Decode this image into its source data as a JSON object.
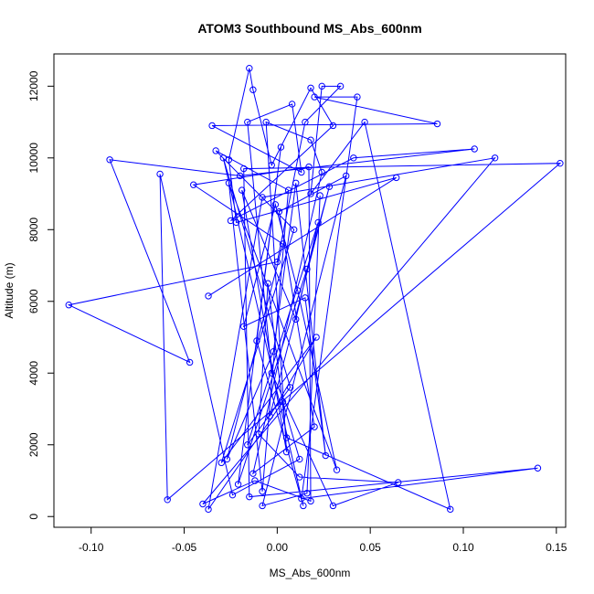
{
  "chart_data": {
    "type": "line",
    "title": "ATOM3 Southbound MS_Abs_600nm",
    "xlabel": "MS_Abs_600nm",
    "ylabel": "Altitude (m)",
    "xlim": [
      -0.12,
      0.155
    ],
    "ylim": [
      -300,
      12900
    ],
    "x_ticks": [
      -0.1,
      -0.05,
      0.0,
      0.05,
      0.1,
      0.15
    ],
    "x_tick_labels": [
      "-0.10",
      "-0.05",
      "0.00",
      "0.05",
      "0.10",
      "0.15"
    ],
    "y_ticks": [
      0,
      2000,
      4000,
      6000,
      8000,
      10000,
      12000
    ],
    "y_tick_labels": [
      "0",
      "2000",
      "4000",
      "6000",
      "8000",
      "10000",
      "12000"
    ],
    "grid": false,
    "series": [
      {
        "color": "#0000ff",
        "marker": "open-circle",
        "points": [
          [
            -0.037,
            6150
          ],
          [
            0.064,
            9450
          ],
          [
            -0.022,
            8200
          ],
          [
            -0.026,
            9950
          ],
          [
            -0.015,
            12500
          ],
          [
            -0.013,
            11900
          ],
          [
            -0.003,
            9800
          ],
          [
            0.018,
            11950
          ],
          [
            0.03,
            10900
          ],
          [
            -0.025,
            8250
          ],
          [
            0.041,
            10000
          ],
          [
            0.106,
            10250
          ],
          [
            -0.02,
            9500
          ],
          [
            -0.09,
            9950
          ],
          [
            -0.047,
            4300
          ],
          [
            -0.112,
            5900
          ],
          [
            0.0,
            7100
          ],
          [
            0.015,
            11000
          ],
          [
            0.034,
            12000
          ],
          [
            0.024,
            12000
          ],
          [
            0.018,
            9000
          ],
          [
            0.047,
            11000
          ],
          [
            0.093,
            200
          ],
          [
            0.005,
            2200
          ],
          [
            -0.005,
            6500
          ],
          [
            -0.01,
            2300
          ],
          [
            0.012,
            1100
          ],
          [
            0.065,
            950
          ],
          [
            0.03,
            300
          ],
          [
            -0.003,
            4000
          ],
          [
            -0.016,
            11000
          ],
          [
            0.008,
            11500
          ],
          [
            0.013,
            9600
          ],
          [
            -0.035,
            10900
          ],
          [
            0.086,
            10950
          ],
          [
            0.02,
            11700
          ],
          [
            0.043,
            11700
          ],
          [
            0.013,
            500
          ],
          [
            0.14,
            1350
          ],
          [
            -0.015,
            550
          ],
          [
            -0.018,
            9700
          ],
          [
            0.152,
            9850
          ],
          [
            -0.059,
            470
          ],
          [
            -0.063,
            9550
          ],
          [
            -0.024,
            600
          ],
          [
            0.012,
            1600
          ],
          [
            0.003,
            3200
          ],
          [
            -0.037,
            200
          ],
          [
            -0.008,
            8900
          ],
          [
            0.117,
            10000
          ],
          [
            -0.04,
            350
          ],
          [
            -0.012,
            1000
          ],
          [
            0.018,
            430
          ],
          [
            0.017,
            9750
          ],
          [
            -0.045,
            9250
          ],
          [
            0.003,
            7600
          ],
          [
            -0.027,
            1600
          ],
          [
            -0.002,
            4600
          ],
          [
            0.01,
            9300
          ],
          [
            0.026,
            1700
          ],
          [
            0.015,
            6100
          ],
          [
            -0.018,
            5300
          ],
          [
            -0.001,
            8700
          ],
          [
            0.011,
            6300
          ],
          [
            0.032,
            1300
          ],
          [
            -0.026,
            9300
          ],
          [
            -0.008,
            700
          ],
          [
            0.006,
            9100
          ],
          [
            -0.033,
            10200
          ],
          [
            0.009,
            8000
          ],
          [
            -0.03,
            1500
          ],
          [
            0.021,
            5000
          ],
          [
            -0.004,
            2800
          ],
          [
            0.028,
            9200
          ],
          [
            0.016,
            6900
          ],
          [
            -0.021,
            900
          ],
          [
            0.002,
            10300
          ],
          [
            -0.011,
            4900
          ],
          [
            0.014,
            300
          ],
          [
            -0.029,
            10000
          ],
          [
            0.007,
            3600
          ],
          [
            -0.016,
            2000
          ],
          [
            0.022,
            8200
          ],
          [
            0.01,
            5500
          ],
          [
            -0.019,
            9100
          ],
          [
            0.005,
            1800
          ],
          [
            -0.006,
            11000
          ],
          [
            0.018,
            10500
          ],
          [
            0.024,
            9600
          ],
          [
            -0.013,
            1200
          ],
          [
            0.02,
            2500
          ],
          [
            0.001,
            8500
          ],
          [
            0.037,
            9500
          ],
          [
            -0.008,
            300
          ],
          [
            0.016,
            650
          ],
          [
            0.023,
            8950
          ]
        ]
      }
    ]
  }
}
